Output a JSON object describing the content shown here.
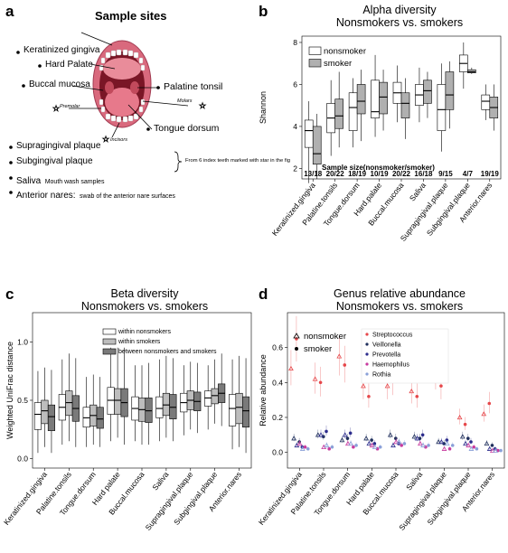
{
  "panel_a": {
    "label": "a",
    "title": "Sample sites",
    "sites": [
      "Keratinized gingiva",
      "Hard Palate",
      "Buccal mucosa",
      "Palatine tonsil",
      "Tongue dorsum"
    ],
    "tooth_labels": [
      "Premolar",
      "Molars",
      "Incisors"
    ],
    "plaque_sites": [
      "Supragingival plaque",
      "Subgingival plaque"
    ],
    "plaque_note": "From 6 index teeth marked with star in the fig",
    "saliva": "Saliva",
    "saliva_note": "Mouth wash samples",
    "nares": "Anterior nares:",
    "nares_note": "swab of the anterior nare surfaces"
  },
  "chart_data": [
    {
      "id": "b",
      "type": "boxplot",
      "title": "Alpha diversity\nNonsmokers vs. smokers",
      "ylabel": "Shannon",
      "ylim": [
        1.5,
        8.3
      ],
      "yticks": [
        2,
        4,
        6,
        8
      ],
      "legend": [
        "nonsmoker",
        "smoker"
      ],
      "legend_position": "top-left",
      "annotation": "Sample size(nonsmoker/smoker)",
      "categories": [
        "Keratinized.gingiva",
        "Palatine.tonsils",
        "Tongue.dorsum",
        "Hard.palate",
        "Buccal.mucosa",
        "Saliva",
        "Supragingival.plaque",
        "Subgingival.plaque",
        "Anterior.nares"
      ],
      "sample_sizes": [
        "13/18",
        "20/22",
        "18/19",
        "10/19",
        "20/22",
        "16/18",
        "9/15",
        "4/7",
        "19/19"
      ],
      "series": [
        {
          "name": "nonsmoker",
          "color": "#ffffff",
          "boxes": [
            [
              1.3,
              3.0,
              3.8,
              4.3,
              5.2
            ],
            [
              2.6,
              3.7,
              4.4,
              5.1,
              6.2
            ],
            [
              3.0,
              3.8,
              4.9,
              5.6,
              6.3
            ],
            [
              3.5,
              4.4,
              4.7,
              6.2,
              7.4
            ],
            [
              4.2,
              5.1,
              5.6,
              6.1,
              6.9
            ],
            [
              4.2,
              5.0,
              5.5,
              6.0,
              6.8
            ],
            [
              2.8,
              3.8,
              4.8,
              6.0,
              7.0
            ],
            [
              5.8,
              6.6,
              7.0,
              7.4,
              8.0
            ],
            [
              4.3,
              4.8,
              5.2,
              5.5,
              6.0
            ]
          ]
        },
        {
          "name": "smoker",
          "color": "#b0b0b0",
          "boxes": [
            [
              1.5,
              2.2,
              2.7,
              4.0,
              4.6
            ],
            [
              3.0,
              3.9,
              4.5,
              5.3,
              6.6
            ],
            [
              3.3,
              4.6,
              5.2,
              6.0,
              6.7
            ],
            [
              3.8,
              4.6,
              5.4,
              6.1,
              6.7
            ],
            [
              3.4,
              4.4,
              5.1,
              5.6,
              6.3
            ],
            [
              4.4,
              5.1,
              5.7,
              6.2,
              6.6
            ],
            [
              3.9,
              4.8,
              5.5,
              6.6,
              7.1
            ],
            [
              6.5,
              6.55,
              6.6,
              6.7,
              6.8
            ],
            [
              3.8,
              4.4,
              4.9,
              5.4,
              6.0
            ]
          ]
        }
      ]
    },
    {
      "id": "c",
      "type": "boxplot",
      "title": "Beta diversity\nNonsmokers vs. smokers",
      "ylabel": "Weighted UniFrac distance",
      "ylim": [
        -0.08,
        1.25
      ],
      "yticks": [
        0.0,
        0.5,
        1.0
      ],
      "legend": [
        "within nonsmokers",
        "within smokers",
        "between nonsmokers and smokers"
      ],
      "legend_position": "top-left",
      "categories": [
        "Keratinized.gingiva",
        "Palatine.tonsils",
        "Tongue.dorsum",
        "Hard palate",
        "Buccal.mucosa",
        "Saliva",
        "Supragingival.plaque",
        "Subgingival.plaque",
        "Anterior.nares"
      ],
      "series": [
        {
          "name": "within nonsmokers",
          "color": "#ffffff",
          "boxes": [
            [
              0.05,
              0.25,
              0.38,
              0.48,
              0.75
            ],
            [
              0.12,
              0.33,
              0.44,
              0.55,
              0.85
            ],
            [
              0.1,
              0.27,
              0.35,
              0.44,
              0.7
            ],
            [
              0.15,
              0.38,
              0.5,
              0.61,
              0.95
            ],
            [
              0.15,
              0.33,
              0.43,
              0.53,
              0.8
            ],
            [
              0.15,
              0.35,
              0.43,
              0.53,
              0.85
            ],
            [
              0.2,
              0.4,
              0.48,
              0.56,
              0.8
            ],
            [
              0.25,
              0.45,
              0.52,
              0.58,
              0.8
            ],
            [
              0.08,
              0.28,
              0.43,
              0.55,
              0.85
            ]
          ]
        },
        {
          "name": "within smokers",
          "color": "#bdbdbd",
          "boxes": [
            [
              0.1,
              0.3,
              0.41,
              0.5,
              0.78
            ],
            [
              0.15,
              0.37,
              0.48,
              0.58,
              0.9
            ],
            [
              0.12,
              0.28,
              0.37,
              0.46,
              0.72
            ],
            [
              0.18,
              0.38,
              0.5,
              0.6,
              0.95
            ],
            [
              0.12,
              0.32,
              0.42,
              0.52,
              0.8
            ],
            [
              0.18,
              0.37,
              0.46,
              0.56,
              0.88
            ],
            [
              0.25,
              0.42,
              0.5,
              0.58,
              0.83
            ],
            [
              0.3,
              0.47,
              0.54,
              0.6,
              0.85
            ],
            [
              0.1,
              0.3,
              0.44,
              0.56,
              0.88
            ]
          ]
        },
        {
          "name": "between nonsmokers and smokers",
          "color": "#7a7a7a",
          "boxes": [
            [
              0.05,
              0.24,
              0.36,
              0.46,
              0.76
            ],
            [
              0.1,
              0.32,
              0.43,
              0.54,
              0.86
            ],
            [
              0.1,
              0.26,
              0.34,
              0.44,
              0.7
            ],
            [
              0.12,
              0.36,
              0.48,
              0.6,
              0.95
            ],
            [
              0.12,
              0.31,
              0.41,
              0.52,
              0.82
            ],
            [
              0.15,
              0.34,
              0.44,
              0.55,
              0.86
            ],
            [
              0.22,
              0.41,
              0.49,
              0.57,
              0.82
            ],
            [
              0.28,
              0.48,
              0.56,
              0.64,
              0.9
            ],
            [
              0.05,
              0.27,
              0.41,
              0.53,
              0.86
            ]
          ]
        }
      ]
    },
    {
      "id": "d",
      "type": "scatter",
      "title": "Genus relative abundance\nNonsmokers vs. smokers",
      "ylabel": "Relative abundance",
      "ylim": [
        -0.09,
        0.8
      ],
      "yticks": [
        0.0,
        0.2,
        0.4,
        0.6
      ],
      "shape_legend": [
        "nonsmoker",
        "smoker"
      ],
      "legend_position": "top-left",
      "categories": [
        "Keratinized.gingiva",
        "Palatine.tonsils",
        "Tongue.dorsum",
        "Hard.palate",
        "Buccal.mucosa",
        "Saliva",
        "Supragingival.plaque",
        "Subgingival.plaque",
        "Anterior.nares"
      ],
      "series": [
        {
          "name": "Streptococcus",
          "color": "#e6474a",
          "nonsmoker": [
            0.48,
            0.42,
            0.55,
            0.38,
            0.38,
            0.35,
            0.45,
            0.2,
            0.22
          ],
          "smoker": [
            0.65,
            0.4,
            0.5,
            0.32,
            0.41,
            0.32,
            0.38,
            0.16,
            0.28
          ]
        },
        {
          "name": "Veillonella",
          "color": "#1f2f5c",
          "nonsmoker": [
            0.08,
            0.1,
            0.07,
            0.08,
            0.1,
            0.09,
            0.06,
            0.09,
            0.05
          ],
          "smoker": [
            0.06,
            0.09,
            0.08,
            0.07,
            0.08,
            0.08,
            0.05,
            0.08,
            0.04
          ]
        },
        {
          "name": "Prevotella",
          "color": "#2c2c8c",
          "nonsmoker": [
            0.04,
            0.1,
            0.1,
            0.05,
            0.04,
            0.08,
            0.06,
            0.05,
            0.02
          ],
          "smoker": [
            0.03,
            0.12,
            0.11,
            0.05,
            0.05,
            0.1,
            0.07,
            0.06,
            0.02
          ]
        },
        {
          "name": "Haemophilus",
          "color": "#c73a9e",
          "nonsmoker": [
            0.05,
            0.03,
            0.05,
            0.04,
            0.06,
            0.05,
            0.02,
            0.04,
            0.01
          ],
          "smoker": [
            0.03,
            0.02,
            0.03,
            0.02,
            0.04,
            0.03,
            0.02,
            0.03,
            0.01
          ]
        },
        {
          "name": "Rothia",
          "color": "#8aa0d8",
          "nonsmoker": [
            0.02,
            0.04,
            0.05,
            0.03,
            0.06,
            0.04,
            0.05,
            0.02,
            0.01
          ],
          "smoker": [
            0.02,
            0.03,
            0.04,
            0.03,
            0.05,
            0.04,
            0.04,
            0.02,
            0.01
          ]
        }
      ]
    }
  ]
}
